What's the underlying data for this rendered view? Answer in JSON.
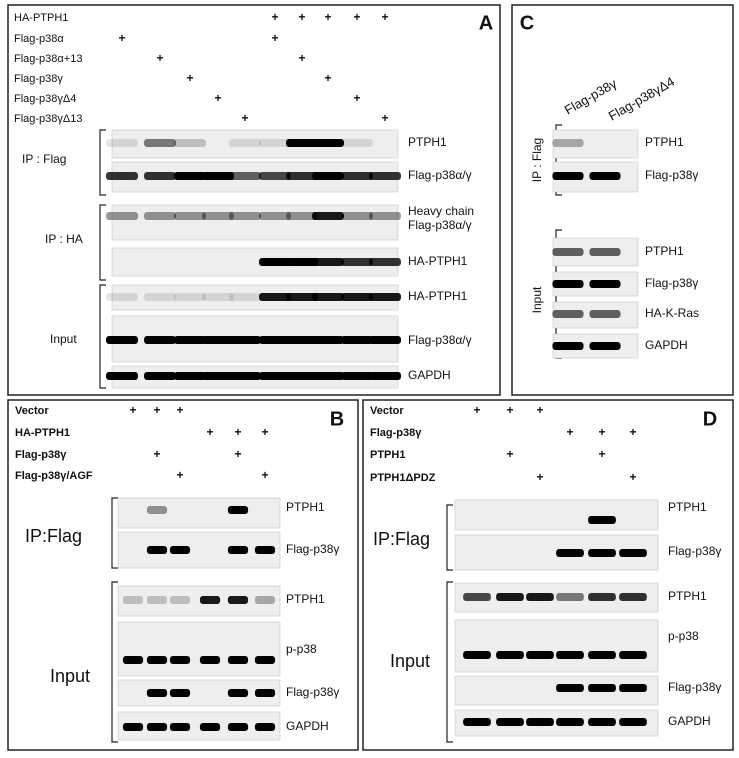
{
  "panels": [
    {
      "letter": "A",
      "treatments": [
        {
          "label": "HA-PTPH1",
          "signs": [
            null,
            null,
            null,
            null,
            null,
            "+",
            "+",
            "+",
            "+",
            "+"
          ]
        },
        {
          "label": "Flag-p38α",
          "signs": [
            "+",
            null,
            null,
            null,
            null,
            "+",
            null,
            null,
            null,
            null
          ]
        },
        {
          "label": "Flag-p38α+13",
          "signs": [
            null,
            "+",
            null,
            null,
            null,
            null,
            "+",
            null,
            null,
            null
          ]
        },
        {
          "label": "Flag-p38γ",
          "signs": [
            null,
            null,
            "+",
            null,
            null,
            null,
            null,
            "+",
            null,
            null
          ]
        },
        {
          "label": "Flag-p38γΔ4",
          "signs": [
            null,
            null,
            null,
            "+",
            null,
            null,
            null,
            null,
            "+",
            null
          ]
        },
        {
          "label": "Flag-p38γΔ13",
          "signs": [
            null,
            null,
            null,
            null,
            "+",
            null,
            null,
            null,
            null,
            "+"
          ]
        }
      ],
      "groups": [
        {
          "label": "IP : Flag",
          "blots": [
            "PTPH1",
            "Flag-p38α/γ"
          ]
        },
        {
          "label": "IP : HA",
          "blots": [
            "Heavy chain",
            "Flag-p38α/γ",
            "HA-PTPH1"
          ]
        },
        {
          "label": "Input",
          "blots": [
            "HA-PTPH1",
            "Flag-p38α/γ",
            "GAPDH"
          ]
        }
      ]
    },
    {
      "letter": "B",
      "treatments": [
        {
          "label": "Vector",
          "signs": [
            "+",
            "+",
            "+",
            null,
            null,
            null
          ]
        },
        {
          "label": "HA-PTPH1",
          "signs": [
            null,
            null,
            null,
            "+",
            "+",
            "+"
          ]
        },
        {
          "label": "Flag-p38γ",
          "signs": [
            null,
            "+",
            null,
            null,
            "+",
            null
          ]
        },
        {
          "label": "Flag-p38γ/AGF",
          "signs": [
            null,
            null,
            "+",
            null,
            null,
            "+"
          ]
        }
      ],
      "groups": [
        {
          "label": "IP:Flag",
          "blots": [
            "PTPH1",
            "Flag-p38γ"
          ]
        },
        {
          "label": "Input",
          "blots": [
            "PTPH1",
            "p-p38",
            "Flag-p38γ",
            "GAPDH"
          ]
        }
      ]
    },
    {
      "letter": "C",
      "lanes": [
        "Flag-p38γ",
        "Flag-p38γΔ4"
      ],
      "groups": [
        {
          "label": "IP : Flag",
          "blots": [
            "PTPH1",
            "Flag-p38γ"
          ]
        },
        {
          "label": "Input",
          "blots": [
            "PTPH1",
            "Flag-p38γ",
            "HA-K-Ras",
            "GAPDH"
          ]
        }
      ]
    },
    {
      "letter": "D",
      "treatments": [
        {
          "label": "Vector",
          "signs": [
            "+",
            "+",
            "+",
            null,
            null,
            null
          ]
        },
        {
          "label": "Flag-p38γ",
          "signs": [
            null,
            null,
            null,
            "+",
            "+",
            "+"
          ]
        },
        {
          "label": "PTPH1",
          "signs": [
            null,
            "+",
            null,
            null,
            "+",
            null
          ]
        },
        {
          "label": "PTPH1ΔPDZ",
          "signs": [
            null,
            null,
            "+",
            null,
            null,
            "+"
          ]
        }
      ],
      "groups": [
        {
          "label": "IP:Flag",
          "blots": [
            "PTPH1",
            "Flag-p38γ"
          ]
        },
        {
          "label": "Input",
          "blots": [
            "PTPH1",
            "p-p38",
            "Flag-p38γ",
            "GAPDH"
          ]
        }
      ]
    }
  ]
}
